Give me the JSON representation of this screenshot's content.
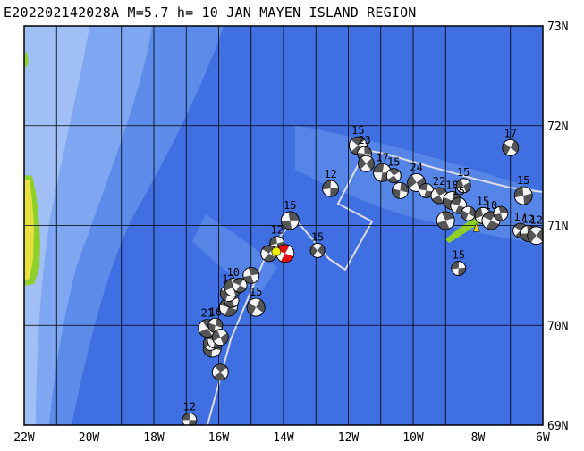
{
  "title": "E202202142028A M=5.7 h= 10 JAN MAYEN ISLAND REGION",
  "map": {
    "lon_range": [
      -22,
      -6
    ],
    "lat_range": [
      69,
      73
    ],
    "lon_tick_labels": [
      "22W",
      "20W",
      "18W",
      "16W",
      "14W",
      "12W",
      "10W",
      "8W",
      "6W"
    ],
    "lat_tick_labels": [
      "69N",
      "70N",
      "71N",
      "72N",
      "73N"
    ],
    "colors": {
      "deep_ocean": "#3f6fe0",
      "mid_ocean": "#5d8bea",
      "shallow_ocean": "#7fa6f0",
      "shelf": "#9fbff5",
      "land_green": "#8ecf2a",
      "land_yellow": "#e8e040",
      "plate_boundary": "#dcdce6",
      "grid": "#000000"
    },
    "main_event": {
      "name": "E202202142028A",
      "lon": -13.95,
      "lat": 70.72,
      "magnitude": 5.7,
      "depth_km": 10
    },
    "events": [
      {
        "lon": -16.9,
        "lat": 69.05,
        "label": "12"
      },
      {
        "lon": -15.95,
        "lat": 69.53,
        "label": ""
      },
      {
        "lon": -16.2,
        "lat": 69.77,
        "label": ""
      },
      {
        "lon": -16.25,
        "lat": 69.82,
        "label": ""
      },
      {
        "lon": -16.1,
        "lat": 69.85,
        "label": ""
      },
      {
        "lon": -16.35,
        "lat": 69.97,
        "label": "21"
      },
      {
        "lon": -16.1,
        "lat": 70.0,
        "label": "16"
      },
      {
        "lon": -15.95,
        "lat": 69.88,
        "label": ""
      },
      {
        "lon": -15.7,
        "lat": 70.18,
        "label": ""
      },
      {
        "lon": -15.6,
        "lat": 70.25,
        "label": "12"
      },
      {
        "lon": -15.7,
        "lat": 70.32,
        "label": "13"
      },
      {
        "lon": -15.55,
        "lat": 70.38,
        "label": "10"
      },
      {
        "lon": -15.35,
        "lat": 70.4,
        "label": ""
      },
      {
        "lon": -15.0,
        "lat": 70.5,
        "label": ""
      },
      {
        "lon": -14.85,
        "lat": 70.18,
        "label": "15"
      },
      {
        "lon": -14.2,
        "lat": 70.82,
        "label": "12"
      },
      {
        "lon": -14.45,
        "lat": 70.72,
        "label": ""
      },
      {
        "lon": -13.8,
        "lat": 71.05,
        "label": "15"
      },
      {
        "lon": -12.95,
        "lat": 70.75,
        "label": "15"
      },
      {
        "lon": -12.55,
        "lat": 71.37,
        "label": "12"
      },
      {
        "lon": -11.7,
        "lat": 71.8,
        "label": "15"
      },
      {
        "lon": -11.5,
        "lat": 71.72,
        "label": "23"
      },
      {
        "lon": -11.45,
        "lat": 71.62,
        "label": ""
      },
      {
        "lon": -10.95,
        "lat": 71.53,
        "label": "17"
      },
      {
        "lon": -10.6,
        "lat": 71.5,
        "label": "15"
      },
      {
        "lon": -10.4,
        "lat": 71.35,
        "label": ""
      },
      {
        "lon": -9.9,
        "lat": 71.43,
        "label": "24"
      },
      {
        "lon": -9.6,
        "lat": 71.35,
        "label": ""
      },
      {
        "lon": -9.2,
        "lat": 71.3,
        "label": "22"
      },
      {
        "lon": -8.8,
        "lat": 71.25,
        "label": "18"
      },
      {
        "lon": -8.45,
        "lat": 71.4,
        "label": "15"
      },
      {
        "lon": -8.6,
        "lat": 71.2,
        "label": "15"
      },
      {
        "lon": -9.0,
        "lat": 71.05,
        "label": ""
      },
      {
        "lon": -8.3,
        "lat": 71.12,
        "label": ""
      },
      {
        "lon": -7.85,
        "lat": 71.1,
        "label": "15"
      },
      {
        "lon": -7.6,
        "lat": 71.05,
        "label": "10"
      },
      {
        "lon": -7.3,
        "lat": 71.12,
        "label": ""
      },
      {
        "lon": -7.0,
        "lat": 71.78,
        "label": "17"
      },
      {
        "lon": -6.6,
        "lat": 71.3,
        "label": "15"
      },
      {
        "lon": -6.7,
        "lat": 70.95,
        "label": "17"
      },
      {
        "lon": -6.45,
        "lat": 70.92,
        "label": "12"
      },
      {
        "lon": -6.2,
        "lat": 70.9,
        "label": "12"
      },
      {
        "lon": -8.6,
        "lat": 70.57,
        "label": "15"
      }
    ]
  }
}
